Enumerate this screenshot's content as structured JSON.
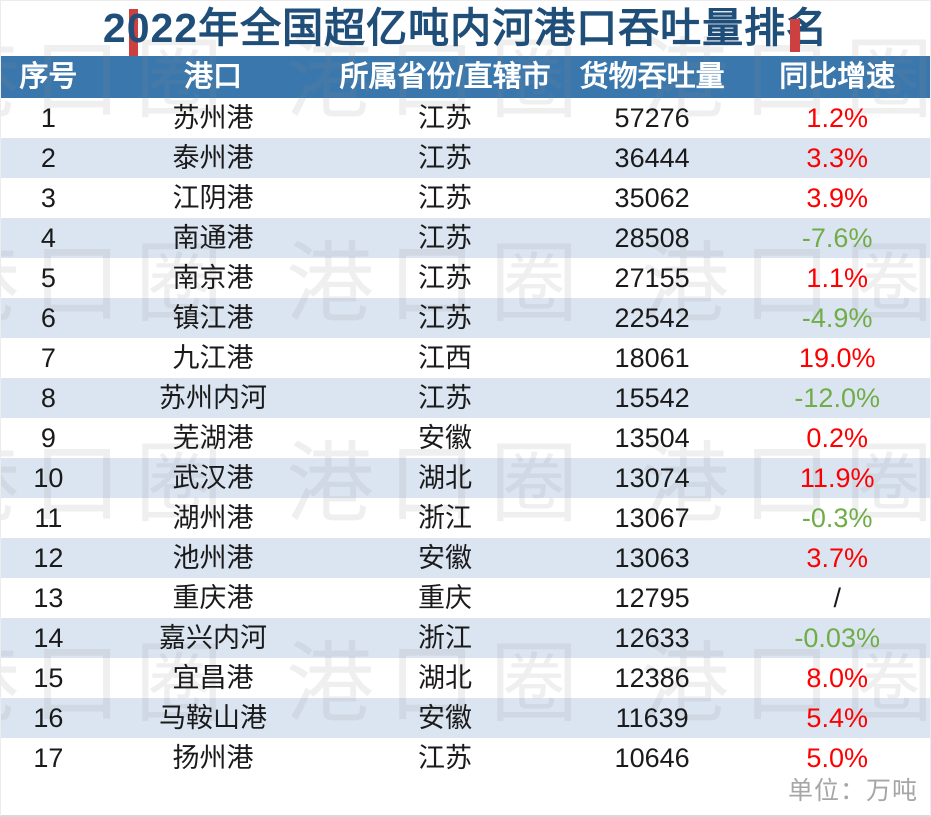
{
  "chart_data": {
    "type": "table",
    "title": "2022年全国超亿吨内河港口吞吐量排名",
    "unit_note": "单位：万吨",
    "columns": [
      "序号",
      "港口",
      "所属省份/直辖市",
      "货物吞吐量",
      "同比增速"
    ],
    "rows": [
      {
        "rank": "1",
        "port": "苏州港",
        "province": "江苏",
        "throughput": "57276",
        "growth": "1.2%",
        "trend": "up"
      },
      {
        "rank": "2",
        "port": "泰州港",
        "province": "江苏",
        "throughput": "36444",
        "growth": "3.3%",
        "trend": "up"
      },
      {
        "rank": "3",
        "port": "江阴港",
        "province": "江苏",
        "throughput": "35062",
        "growth": "3.9%",
        "trend": "up"
      },
      {
        "rank": "4",
        "port": "南通港",
        "province": "江苏",
        "throughput": "28508",
        "growth": "-7.6%",
        "trend": "down"
      },
      {
        "rank": "5",
        "port": "南京港",
        "province": "江苏",
        "throughput": "27155",
        "growth": "1.1%",
        "trend": "up"
      },
      {
        "rank": "6",
        "port": "镇江港",
        "province": "江苏",
        "throughput": "22542",
        "growth": "-4.9%",
        "trend": "down"
      },
      {
        "rank": "7",
        "port": "九江港",
        "province": "江西",
        "throughput": "18061",
        "growth": "19.0%",
        "trend": "up"
      },
      {
        "rank": "8",
        "port": "苏州内河",
        "province": "江苏",
        "throughput": "15542",
        "growth": "-12.0%",
        "trend": "down"
      },
      {
        "rank": "9",
        "port": "芜湖港",
        "province": "安徽",
        "throughput": "13504",
        "growth": "0.2%",
        "trend": "up"
      },
      {
        "rank": "10",
        "port": "武汉港",
        "province": "湖北",
        "throughput": "13074",
        "growth": "11.9%",
        "trend": "up"
      },
      {
        "rank": "11",
        "port": "湖州港",
        "province": "浙江",
        "throughput": "13067",
        "growth": "-0.3%",
        "trend": "down"
      },
      {
        "rank": "12",
        "port": "池州港",
        "province": "安徽",
        "throughput": "13063",
        "growth": "3.7%",
        "trend": "up"
      },
      {
        "rank": "13",
        "port": "重庆港",
        "province": "重庆",
        "throughput": "12795",
        "growth": "/",
        "trend": "none"
      },
      {
        "rank": "14",
        "port": "嘉兴内河",
        "province": "浙江",
        "throughput": "12633",
        "growth": "-0.03%",
        "trend": "down"
      },
      {
        "rank": "15",
        "port": "宜昌港",
        "province": "湖北",
        "throughput": "12386",
        "growth": "8.0%",
        "trend": "up"
      },
      {
        "rank": "16",
        "port": "马鞍山港",
        "province": "安徽",
        "throughput": "11639",
        "growth": "5.4%",
        "trend": "up"
      },
      {
        "rank": "17",
        "port": "扬州港",
        "province": "江苏",
        "throughput": "10646",
        "growth": "5.0%",
        "trend": "up"
      }
    ]
  },
  "watermark_text": "港口圈",
  "colors": {
    "title_text": "#1f4e79",
    "header_bg": "#3a77ad",
    "header_text": "#ffffff",
    "row_alt_bg": "#dbe5f1",
    "growth_up": "#fe0000",
    "growth_down": "#70ad47",
    "unit_text": "#a6a6a6",
    "accent_red": "#cc4040"
  }
}
